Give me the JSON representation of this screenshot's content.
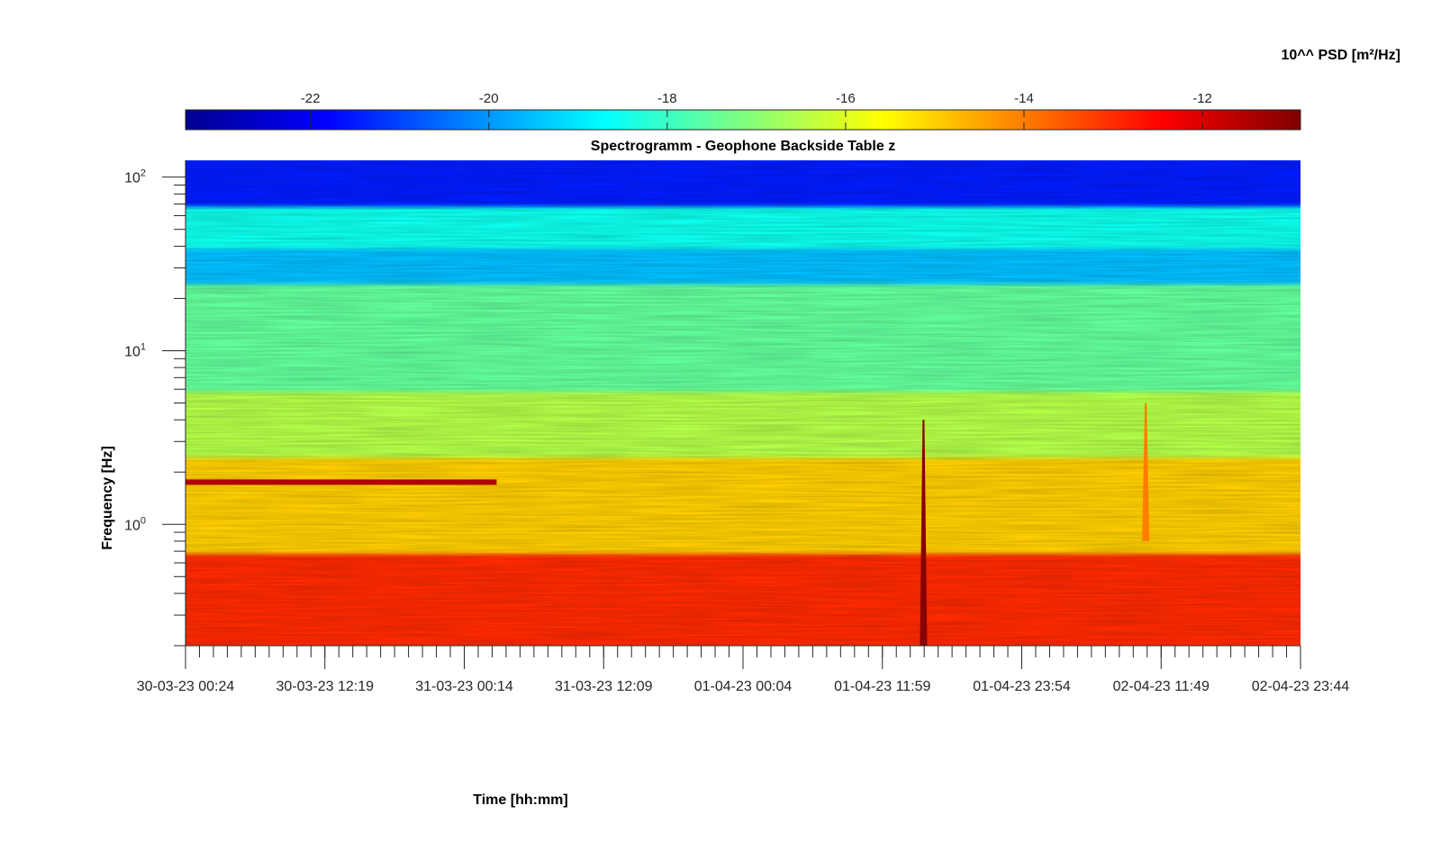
{
  "chart_data": {
    "type": "heatmap",
    "title": "Spectrogramm - Geophone Backside Table z",
    "xlabel": "Time [hh:mm]",
    "ylabel": "Frequency [Hz]",
    "colorbar": {
      "label": "10^^ PSD [m²/Hz]",
      "ticks": [
        -22,
        -20,
        -18,
        -16,
        -14,
        -12
      ],
      "range": [
        -23.4,
        -10.9
      ],
      "colormap": "jet",
      "position": "top"
    },
    "x_tick_labels": [
      "30-03-23 00:24",
      "30-03-23 12:19",
      "31-03-23 00:14",
      "31-03-23 12:09",
      "01-04-23 00:04",
      "01-04-23 11:59",
      "01-04-23 23:54",
      "02-04-23 11:49",
      "02-04-23 23:44"
    ],
    "xlim": [
      "30-03-23 00:24",
      "02-04-23 23:44"
    ],
    "y_scale": "log",
    "y_ticks": [
      {
        "value": 1,
        "base": "10",
        "exp": "0"
      },
      {
        "value": 10,
        "base": "10",
        "exp": "1"
      },
      {
        "value": 100,
        "base": "10",
        "exp": "2"
      }
    ],
    "ylim": [
      0.2,
      125
    ],
    "grid": false,
    "features": [
      {
        "kind": "band",
        "freq_range": [
          0.2,
          0.7
        ],
        "value": -13
      },
      {
        "kind": "band",
        "freq_range": [
          0.7,
          2.5
        ],
        "value": -15
      },
      {
        "kind": "band",
        "freq_range": [
          2.5,
          6
        ],
        "value": -16.5
      },
      {
        "kind": "band",
        "freq_range": [
          6,
          25
        ],
        "value": -17.5
      },
      {
        "kind": "band",
        "freq_range": [
          25,
          40
        ],
        "value": -19.5
      },
      {
        "kind": "band",
        "freq_range": [
          40,
          70
        ],
        "value": -18.5
      },
      {
        "kind": "band",
        "freq_range": [
          70,
          125
        ],
        "value": -21.5
      },
      {
        "kind": "tonal_line",
        "freq": 1.75,
        "time_range": [
          "30-03-23 00:24",
          "31-03-23 03:00"
        ],
        "value": -11.5
      },
      {
        "kind": "transient",
        "time": "01-04-23 15:30",
        "freq_range": [
          0.2,
          4
        ],
        "value": -11
      },
      {
        "kind": "transient",
        "time": "02-04-23 10:30",
        "freq_range": [
          0.8,
          5
        ],
        "value": -14
      }
    ]
  }
}
